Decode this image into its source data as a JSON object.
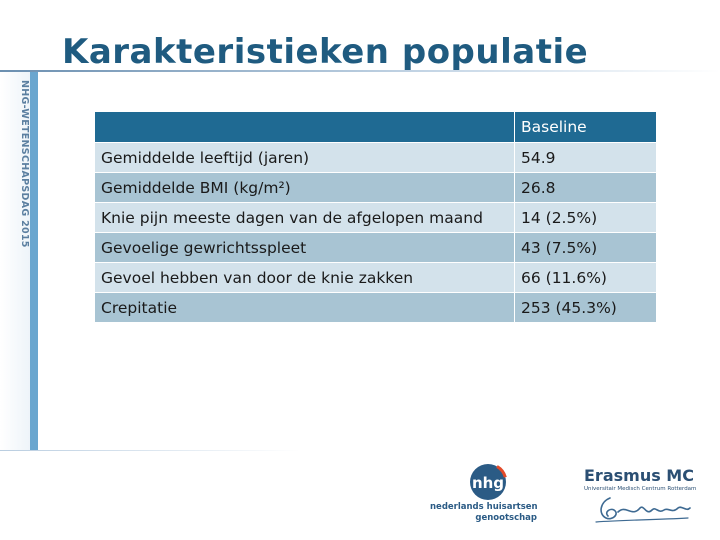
{
  "slide": {
    "title": "Karakteristieken populatie",
    "sidebar_text": "NHG-WETENSCHAPSDAG 2015"
  },
  "table": {
    "header": [
      "",
      "Baseline"
    ],
    "rows": [
      {
        "label": "Gemiddelde leeftijd (jaren)",
        "value": "54.9"
      },
      {
        "label": "Gemiddelde BMI (kg/m²)",
        "value": "26.8"
      },
      {
        "label": "Knie pijn meeste dagen van de afgelopen maand",
        "value": "14 (2.5%)"
      },
      {
        "label": "Gevoelige gewrichtsspleet",
        "value": "43 (7.5%)"
      },
      {
        "label": "Gevoel hebben van door de knie zakken",
        "value": "66 (11.6%)"
      },
      {
        "label": "Crepitatie",
        "value": "253 (45.3%)"
      }
    ]
  },
  "logos": {
    "nhg_line1": "nederlands huisartsen",
    "nhg_line2": "genootschap",
    "emc_name": "Erasmus MC",
    "emc_sub": "Universitair Medisch Centrum Rotterdam"
  },
  "colors": {
    "title": "#1f5b80",
    "header_bg": "#1f6a93",
    "row_light": "#d3e2eb",
    "row_dark": "#a8c4d3",
    "sidebar": "#6aa6cf"
  }
}
